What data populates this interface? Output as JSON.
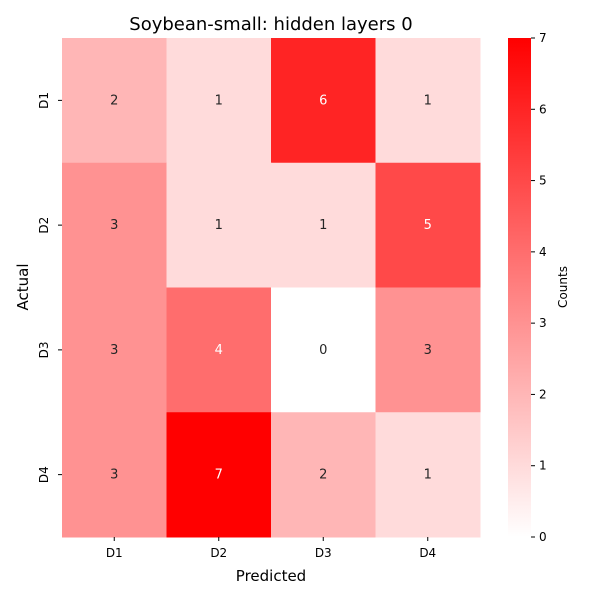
{
  "chart_data": {
    "type": "heatmap",
    "title": "Soybean-small: hidden layers 0",
    "xlabel": "Predicted",
    "ylabel": "Actual",
    "x_categories": [
      "D1",
      "D2",
      "D3",
      "D4"
    ],
    "y_categories": [
      "D1",
      "D2",
      "D3",
      "D4"
    ],
    "values": [
      [
        2,
        1,
        6,
        1
      ],
      [
        3,
        1,
        1,
        5
      ],
      [
        3,
        4,
        0,
        3
      ],
      [
        3,
        7,
        2,
        1
      ]
    ],
    "colorbar": {
      "label": "Counts",
      "min": 0,
      "max": 7,
      "ticks": [
        0,
        1,
        2,
        3,
        4,
        5,
        6,
        7
      ],
      "color_low": "#ffffff",
      "color_high": "#ff0000"
    }
  }
}
